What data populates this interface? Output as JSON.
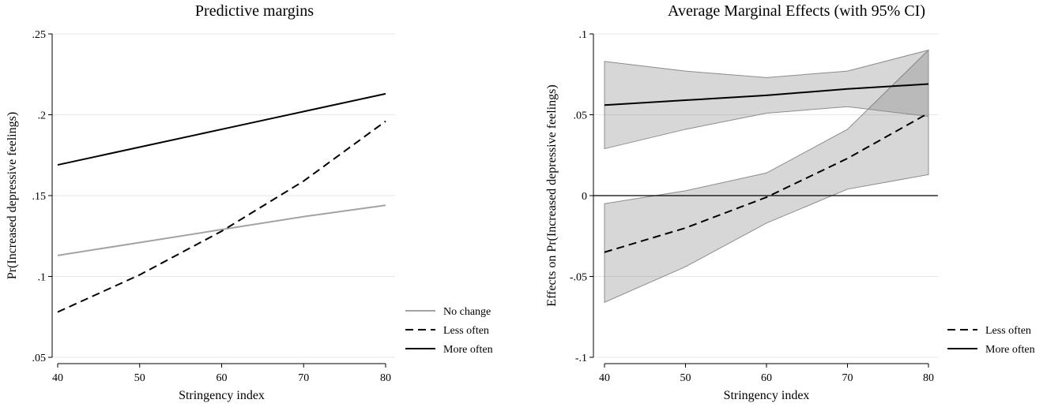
{
  "chart_data": [
    {
      "type": "line",
      "title": "Predictive margins",
      "xlabel": "Stringency index",
      "ylabel": "Pr(Increased depressive feelings)",
      "x": [
        40,
        50,
        60,
        70,
        80
      ],
      "xlim": [
        40,
        80
      ],
      "ylim": [
        0.05,
        0.25
      ],
      "xticks": [
        {
          "v": 40,
          "label": "40"
        },
        {
          "v": 50,
          "label": "50"
        },
        {
          "v": 60,
          "label": "60"
        },
        {
          "v": 70,
          "label": "70"
        },
        {
          "v": 80,
          "label": "80"
        }
      ],
      "yticks": [
        {
          "v": 0.05,
          "label": ".05"
        },
        {
          "v": 0.1,
          "label": ".1"
        },
        {
          "v": 0.15,
          "label": ".15"
        },
        {
          "v": 0.2,
          "label": ".2"
        },
        {
          "v": 0.25,
          "label": ".25"
        }
      ],
      "grid": true,
      "legend_position": "bottom-right",
      "series": [
        {
          "name": "No change",
          "style": "solid",
          "color": "#a3a3a3",
          "values": [
            0.113,
            0.121,
            0.129,
            0.137,
            0.144
          ]
        },
        {
          "name": "Less often",
          "style": "dashed",
          "color": "#000000",
          "values": [
            0.078,
            0.101,
            0.128,
            0.159,
            0.196
          ]
        },
        {
          "name": "More often",
          "style": "solid",
          "color": "#000000",
          "values": [
            0.169,
            0.18,
            0.191,
            0.202,
            0.213
          ]
        }
      ]
    },
    {
      "type": "line",
      "title": "Average Marginal Effects (with 95% CI)",
      "xlabel": "Stringency index",
      "ylabel": "Effects on Pr(Increased depressive feelings)",
      "x": [
        40,
        50,
        60,
        70,
        80
      ],
      "xlim": [
        40,
        80
      ],
      "ylim": [
        -0.1,
        0.1
      ],
      "xticks": [
        {
          "v": 40,
          "label": "40"
        },
        {
          "v": 50,
          "label": "50"
        },
        {
          "v": 60,
          "label": "60"
        },
        {
          "v": 70,
          "label": "70"
        },
        {
          "v": 80,
          "label": "80"
        }
      ],
      "yticks": [
        {
          "v": -0.1,
          "label": "-.1"
        },
        {
          "v": -0.05,
          "label": "-.05"
        },
        {
          "v": 0,
          "label": "0"
        },
        {
          "v": 0.05,
          "label": ".05"
        },
        {
          "v": 0.1,
          "label": ".1"
        }
      ],
      "grid": true,
      "reference_line": 0,
      "legend_position": "bottom-right",
      "series": [
        {
          "name": "Less often",
          "style": "dashed",
          "color": "#000000",
          "values": [
            -0.035,
            -0.02,
            -0.001,
            0.023,
            0.051
          ],
          "ci_lower": [
            -0.066,
            -0.044,
            -0.017,
            0.004,
            0.013
          ],
          "ci_upper": [
            -0.005,
            0.003,
            0.014,
            0.041,
            0.09
          ]
        },
        {
          "name": "More often",
          "style": "solid",
          "color": "#000000",
          "values": [
            0.056,
            0.059,
            0.062,
            0.066,
            0.069
          ],
          "ci_lower": [
            0.029,
            0.041,
            0.051,
            0.055,
            0.049
          ],
          "ci_upper": [
            0.083,
            0.077,
            0.073,
            0.077,
            0.09
          ]
        }
      ]
    }
  ]
}
